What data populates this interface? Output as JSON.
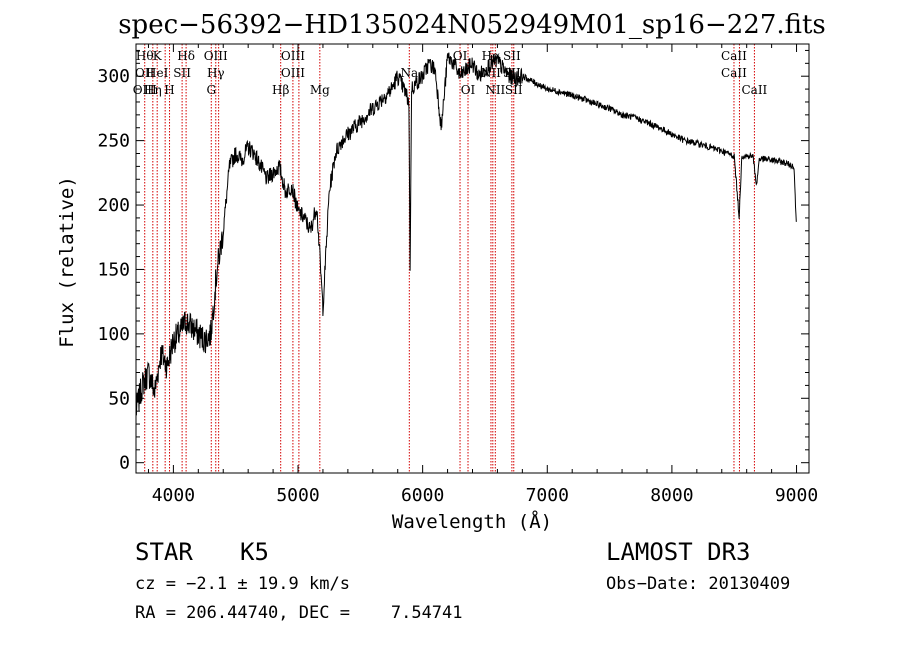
{
  "chart_data": {
    "type": "line",
    "title": "spec−56392−HD135024N052949M01_sp16−227.fits",
    "xlabel": "Wavelength (Å)",
    "ylabel": "Flux (relative)",
    "xlim": [
      3700,
      9100
    ],
    "ylim": [
      -8,
      325
    ],
    "xticks": [
      4000,
      5000,
      6000,
      7000,
      8000,
      9000
    ],
    "yticks": [
      0,
      50,
      100,
      150,
      200,
      250,
      300
    ],
    "series": [
      {
        "name": "spectrum",
        "x": [
          3700,
          3750,
          3800,
          3850,
          3900,
          3950,
          4000,
          4050,
          4100,
          4150,
          4200,
          4250,
          4300,
          4350,
          4400,
          4450,
          4500,
          4550,
          4600,
          4650,
          4700,
          4750,
          4800,
          4850,
          4900,
          4950,
          5000,
          5050,
          5100,
          5150,
          5200,
          5250,
          5300,
          5350,
          5400,
          5450,
          5500,
          5550,
          5600,
          5650,
          5700,
          5750,
          5800,
          5850,
          5890,
          5900,
          5910,
          5950,
          6000,
          6050,
          6100,
          6150,
          6200,
          6250,
          6300,
          6350,
          6400,
          6450,
          6500,
          6550,
          6600,
          6650,
          6700,
          6750,
          6800,
          6900,
          7000,
          7100,
          7200,
          7300,
          7400,
          7500,
          7600,
          7700,
          7800,
          7900,
          8000,
          8100,
          8200,
          8300,
          8400,
          8500,
          8540,
          8560,
          8600,
          8650,
          8680,
          8700,
          8800,
          8900,
          8980,
          9000
        ],
        "y": [
          40,
          60,
          70,
          55,
          85,
          75,
          95,
          100,
          110,
          105,
          100,
          95,
          100,
          150,
          180,
          230,
          240,
          235,
          245,
          240,
          230,
          220,
          225,
          230,
          210,
          215,
          195,
          190,
          180,
          200,
          120,
          210,
          240,
          250,
          255,
          260,
          265,
          270,
          275,
          280,
          285,
          290,
          300,
          290,
          280,
          140,
          290,
          295,
          300,
          310,
          305,
          260,
          315,
          310,
          300,
          305,
          310,
          300,
          305,
          310,
          312,
          305,
          300,
          298,
          300,
          295,
          290,
          288,
          285,
          282,
          278,
          275,
          270,
          268,
          264,
          260,
          255,
          250,
          248,
          245,
          242,
          238,
          190,
          238,
          238,
          238,
          215,
          236,
          235,
          233,
          230,
          180
        ]
      }
    ],
    "lines": [
      {
        "w": 3770,
        "labels": [
          "Hθ",
          "OII",
          "OIII"
        ]
      },
      {
        "w": 3835,
        "labels": [
          "",
          "",
          "Hη"
        ]
      },
      {
        "w": 3870,
        "labels": [
          "K",
          "HeI"
        ]
      },
      {
        "w": 3934,
        "labels": []
      },
      {
        "w": 3969,
        "labels": [
          "",
          "",
          "H"
        ]
      },
      {
        "w": 4070,
        "labels": [
          "",
          "SII"
        ]
      },
      {
        "w": 4102,
        "labels": [
          "Hδ"
        ]
      },
      {
        "w": 4304,
        "labels": [
          "",
          "",
          "G"
        ]
      },
      {
        "w": 4340,
        "labels": [
          "OIII",
          "Hγ"
        ]
      },
      {
        "w": 4363,
        "labels": []
      },
      {
        "w": 4861,
        "labels": [
          "",
          "",
          "Hβ"
        ]
      },
      {
        "w": 4959,
        "labels": [
          "OIII",
          "OIII"
        ]
      },
      {
        "w": 5007,
        "labels": []
      },
      {
        "w": 5175,
        "labels": [
          "",
          "",
          "Mg"
        ]
      },
      {
        "w": 5893,
        "labels": [
          "",
          "Na"
        ]
      },
      {
        "w": 6300,
        "labels": [
          "OI"
        ]
      },
      {
        "w": 6364,
        "labels": [
          "",
          "",
          "OI"
        ]
      },
      {
        "w": 6548,
        "labels": [
          "Hα",
          "NII"
        ]
      },
      {
        "w": 6563,
        "labels": []
      },
      {
        "w": 6583,
        "labels": [
          "",
          "",
          "NII"
        ]
      },
      {
        "w": 6716,
        "labels": [
          "SII",
          "SII"
        ]
      },
      {
        "w": 6731,
        "labels": [
          "",
          "",
          "SII"
        ]
      },
      {
        "w": 8498,
        "labels": [
          "CaII",
          "CaII"
        ]
      },
      {
        "w": 8542,
        "labels": []
      },
      {
        "w": 8662,
        "labels": [
          "",
          "",
          "CaII"
        ]
      }
    ]
  },
  "info": {
    "object_type": "STAR",
    "subclass": "K5",
    "survey": "LAMOST DR3",
    "cz": "cz = −2.1 ± 19.9 km/s",
    "obs_date": "Obs−Date: 20130409",
    "radec": "RA = 206.44740, DEC =    7.54741"
  }
}
